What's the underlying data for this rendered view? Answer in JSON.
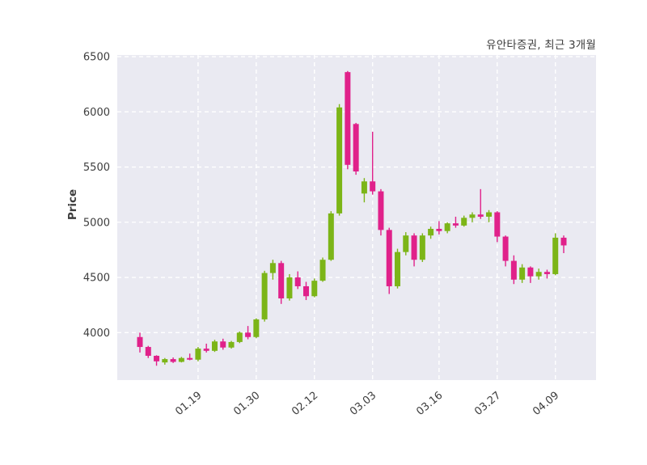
{
  "header": {
    "title": "유안타증권, 최근 3개월"
  },
  "chart_data": {
    "type": "candlestick",
    "title": "유안타증권, 최근 3개월",
    "xlabel": "",
    "ylabel": "Price",
    "ylim": [
      3570,
      6515
    ],
    "yticks": [
      4000,
      4500,
      5000,
      5500,
      6000,
      6500
    ],
    "xtick_labels": [
      "01.19",
      "01.30",
      "02.12",
      "03.03",
      "03.16",
      "03.27",
      "04.09"
    ],
    "xtick_indices": [
      7,
      14,
      21,
      28,
      36,
      43,
      50
    ],
    "grid": true,
    "legend": "none",
    "colors": {
      "up": "#7cb518",
      "down": "#e0218a",
      "plot_bg": "#eaeaf2",
      "grid": "#ffffff",
      "text": "#3d3d3d"
    },
    "candles_format": [
      "open",
      "high",
      "low",
      "close"
    ],
    "candles": [
      [
        3960,
        4000,
        3820,
        3870
      ],
      [
        3870,
        3880,
        3770,
        3790
      ],
      [
        3790,
        3795,
        3700,
        3740
      ],
      [
        3730,
        3770,
        3710,
        3760
      ],
      [
        3760,
        3775,
        3725,
        3735
      ],
      [
        3735,
        3780,
        3730,
        3770
      ],
      [
        3770,
        3810,
        3750,
        3755
      ],
      [
        3755,
        3870,
        3740,
        3855
      ],
      [
        3855,
        3900,
        3820,
        3835
      ],
      [
        3835,
        3935,
        3825,
        3920
      ],
      [
        3920,
        3945,
        3845,
        3865
      ],
      [
        3865,
        3925,
        3855,
        3915
      ],
      [
        3915,
        4010,
        3905,
        4000
      ],
      [
        4000,
        4060,
        3940,
        3960
      ],
      [
        3960,
        4130,
        3950,
        4120
      ],
      [
        4120,
        4560,
        4100,
        4540
      ],
      [
        4540,
        4660,
        4480,
        4630
      ],
      [
        4630,
        4650,
        4260,
        4310
      ],
      [
        4310,
        4530,
        4290,
        4500
      ],
      [
        4500,
        4555,
        4395,
        4420
      ],
      [
        4420,
        4460,
        4295,
        4330
      ],
      [
        4330,
        4490,
        4320,
        4470
      ],
      [
        4470,
        4680,
        4460,
        4660
      ],
      [
        4660,
        5100,
        4650,
        5080
      ],
      [
        5080,
        6070,
        5060,
        6040
      ],
      [
        6360,
        6370,
        5480,
        5520
      ],
      [
        5890,
        5900,
        5430,
        5460
      ],
      [
        5260,
        5400,
        5180,
        5370
      ],
      [
        5370,
        5820,
        5250,
        5280
      ],
      [
        5280,
        5300,
        4880,
        4930
      ],
      [
        4930,
        4950,
        4350,
        4420
      ],
      [
        4420,
        4760,
        4400,
        4730
      ],
      [
        4730,
        4910,
        4700,
        4880
      ],
      [
        4880,
        4900,
        4600,
        4660
      ],
      [
        4660,
        4900,
        4640,
        4880
      ],
      [
        4880,
        4960,
        4850,
        4940
      ],
      [
        4940,
        5010,
        4890,
        4920
      ],
      [
        4920,
        5000,
        4900,
        4990
      ],
      [
        4990,
        5050,
        4950,
        4970
      ],
      [
        4970,
        5060,
        4960,
        5040
      ],
      [
        5040,
        5090,
        5000,
        5070
      ],
      [
        5070,
        5300,
        5030,
        5050
      ],
      [
        5050,
        5110,
        5000,
        5090
      ],
      [
        5090,
        5100,
        4820,
        4870
      ],
      [
        4870,
        4880,
        4600,
        4650
      ],
      [
        4650,
        4700,
        4440,
        4480
      ],
      [
        4480,
        4620,
        4450,
        4590
      ],
      [
        4590,
        4600,
        4450,
        4510
      ],
      [
        4510,
        4580,
        4480,
        4550
      ],
      [
        4550,
        4570,
        4490,
        4530
      ],
      [
        4530,
        4900,
        4520,
        4860
      ],
      [
        4860,
        4880,
        4720,
        4790
      ]
    ]
  }
}
